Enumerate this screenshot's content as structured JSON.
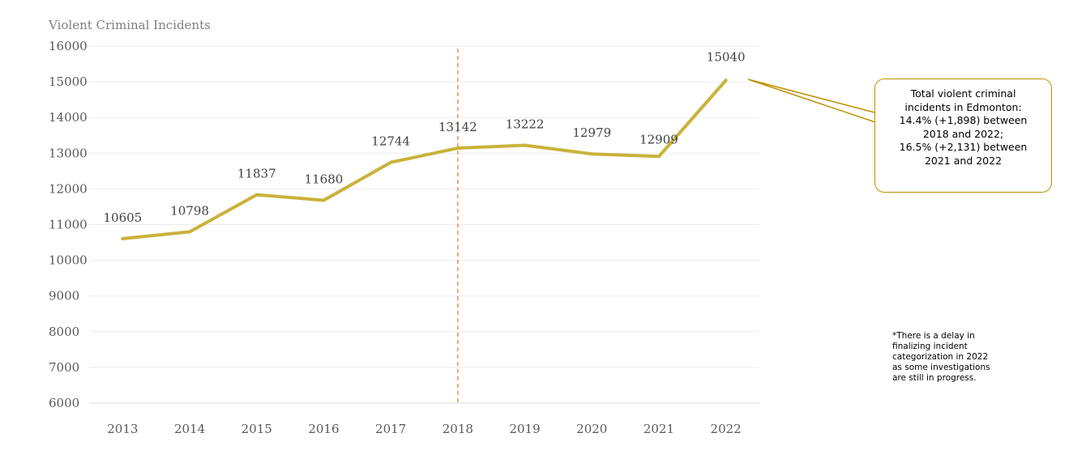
{
  "chart_data": {
    "type": "line",
    "title": "Violent Criminal Incidents",
    "xlabel": "",
    "ylabel": "",
    "x": [
      "2013",
      "2014",
      "2015",
      "2016",
      "2017",
      "2018",
      "2019",
      "2020",
      "2021",
      "2022"
    ],
    "series": [
      {
        "values": [
          10605,
          10798,
          11837,
          11680,
          12744,
          13142,
          13222,
          12979,
          12909,
          15040
        ]
      }
    ],
    "data_labels": [
      "10605",
      "10798",
      "11837",
      "11680",
      "12744",
      "13142",
      "13222",
      "12979",
      "12909",
      "15040"
    ],
    "y_ticks": [
      "6000",
      "7000",
      "8000",
      "9000",
      "10000",
      "11000",
      "12000",
      "13000",
      "14000",
      "15000",
      "16000"
    ],
    "ylim": [
      6000,
      16000
    ],
    "grid": true,
    "legend": "none",
    "marker_line_at": "2018",
    "line_color": "#c9b23a",
    "marker_line_color": "#ed7d31",
    "grid_color": "#ececec",
    "callout_border_color": "#bf9000"
  },
  "annotation": {
    "lines": [
      "Total violent criminal",
      "incidents in Edmonton:",
      "14.4% (+1,898) between",
      "2018 and 2022;",
      "16.5% (+2,131) between",
      "2021 and 2022"
    ]
  },
  "footnote": {
    "lines": [
      "*There is a delay in",
      "finalizing incident",
      "categorization in 2022",
      "as some investigations",
      "are still in progress."
    ]
  }
}
